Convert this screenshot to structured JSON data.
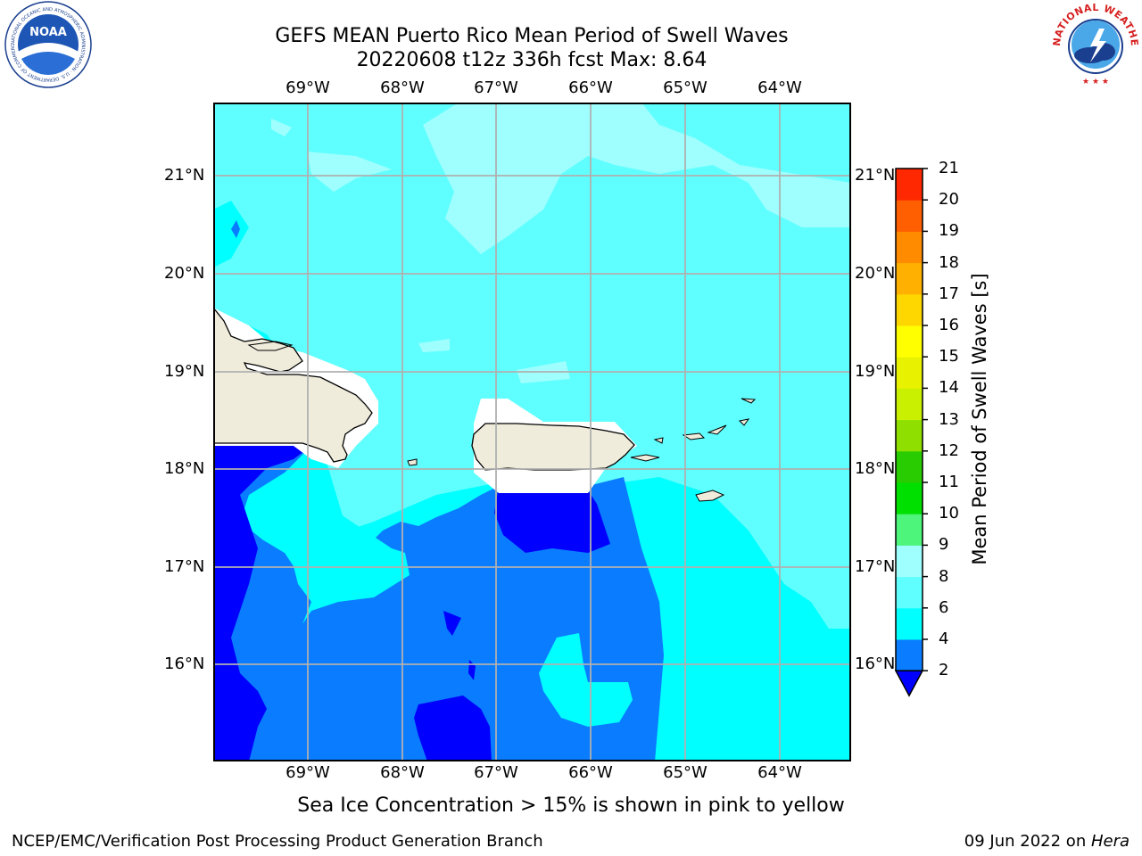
{
  "title": {
    "line1": "GEFS MEAN Puerto Rico Mean Period of Swell Waves",
    "line2": "20220608 t12z 336h fcst   Max: 8.64"
  },
  "logos": {
    "left_text": "NOAA",
    "left_ring_text": "NATIONAL OCEANIC AND ATMOSPHERIC ADMINISTRATION · U.S. DEPARTMENT OF COMMERCE",
    "right_ring_text": "NATIONAL WEATHER SERVICE"
  },
  "map": {
    "lon_ticks": [
      "69°W",
      "68°W",
      "67°W",
      "66°W",
      "65°W",
      "64°W"
    ],
    "lat_ticks": [
      "21°N",
      "20°N",
      "19°N",
      "18°N",
      "17°N",
      "16°N"
    ],
    "colors": {
      "band_2_4": "#0000ff",
      "band_4_6": "#0a7cff",
      "band_6_8": "#00ffff",
      "band_8_9": "#60ffff",
      "band_9_10": "#9fffff",
      "land": "#efecdc",
      "grid": "#b0b0b0"
    }
  },
  "colorbar": {
    "label": "Mean Period of Swell Waves [s]",
    "ticks": [
      "2",
      "4",
      "6",
      "8",
      "9",
      "10",
      "11",
      "12",
      "13",
      "14",
      "15",
      "16",
      "17",
      "18",
      "19",
      "20",
      "21"
    ],
    "colors": [
      "#0a7cff",
      "#00ffff",
      "#60ffff",
      "#9fffff",
      "#4df57a",
      "#00e000",
      "#29cc00",
      "#8fe000",
      "#c8f000",
      "#e8f200",
      "#ffff00",
      "#ffd700",
      "#ffb000",
      "#ff8c00",
      "#ff5f00",
      "#ff2800"
    ],
    "extend_color": "#0000ff"
  },
  "caption": "Sea Ice Concentration > 15% is shown in pink to yellow",
  "footer": {
    "left": "NCEP/EMC/Verification Post Processing Product Generation Branch",
    "date": "09 Jun 2022 on ",
    "machine": "Hera"
  }
}
